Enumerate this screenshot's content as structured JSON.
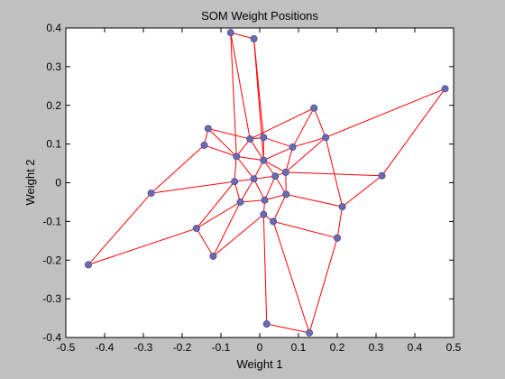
{
  "chart_data": {
    "type": "scatter",
    "title": "SOM Weight Positions",
    "xlabel": "Weight 1",
    "ylabel": "Weight 2",
    "xlim": [
      -0.5,
      0.5
    ],
    "ylim": [
      -0.4,
      0.4
    ],
    "xticks": [
      -0.5,
      -0.4,
      -0.3,
      -0.2,
      -0.1,
      0,
      0.1,
      0.2,
      0.3,
      0.4,
      0.5
    ],
    "xtick_labels": [
      "-0.5",
      "-0.4",
      "-0.3",
      "-0.2",
      "-0.1",
      "0",
      "0.1",
      "0.2",
      "0.3",
      "0.4",
      "0.5"
    ],
    "yticks": [
      -0.4,
      -0.3,
      -0.2,
      -0.1,
      0,
      0.1,
      0.2,
      0.3,
      0.4
    ],
    "ytick_labels": [
      "-0.4",
      "-0.3",
      "-0.2",
      "-0.1",
      "0",
      "0.1",
      "0.2",
      "0.3",
      "0.4"
    ],
    "grid": false,
    "colors": {
      "figure_bg": "#c0c0c0",
      "axes_bg": "#ffffff",
      "line": "#ff0000",
      "marker": "#6b6bb0"
    },
    "nodes": [
      {
        "x": -0.075,
        "y": 0.388
      },
      {
        "x": -0.015,
        "y": 0.372
      },
      {
        "x": 0.14,
        "y": 0.193
      },
      {
        "x": 0.478,
        "y": 0.243
      },
      {
        "x": -0.133,
        "y": 0.14
      },
      {
        "x": -0.143,
        "y": 0.097
      },
      {
        "x": -0.025,
        "y": 0.113
      },
      {
        "x": 0.01,
        "y": 0.117
      },
      {
        "x": 0.085,
        "y": 0.092
      },
      {
        "x": 0.17,
        "y": 0.117
      },
      {
        "x": -0.06,
        "y": 0.068
      },
      {
        "x": 0.01,
        "y": 0.058
      },
      {
        "x": 0.067,
        "y": 0.027
      },
      {
        "x": 0.04,
        "y": 0.017
      },
      {
        "x": 0.315,
        "y": 0.018
      },
      {
        "x": -0.065,
        "y": 0.003
      },
      {
        "x": -0.015,
        "y": 0.01
      },
      {
        "x": -0.05,
        "y": -0.05
      },
      {
        "x": 0.013,
        "y": -0.045
      },
      {
        "x": 0.068,
        "y": -0.03
      },
      {
        "x": 0.213,
        "y": -0.062
      },
      {
        "x": -0.28,
        "y": -0.027
      },
      {
        "x": -0.163,
        "y": -0.118
      },
      {
        "x": 0.01,
        "y": -0.082
      },
      {
        "x": 0.035,
        "y": -0.1
      },
      {
        "x": 0.2,
        "y": -0.143
      },
      {
        "x": -0.12,
        "y": -0.19
      },
      {
        "x": -0.442,
        "y": -0.212
      },
      {
        "x": 0.018,
        "y": -0.365
      },
      {
        "x": 0.128,
        "y": -0.388
      }
    ],
    "edges": [
      [
        0,
        1
      ],
      [
        0,
        10
      ],
      [
        0,
        6
      ],
      [
        1,
        7
      ],
      [
        1,
        11
      ],
      [
        2,
        8
      ],
      [
        2,
        9
      ],
      [
        2,
        6
      ],
      [
        3,
        9
      ],
      [
        3,
        14
      ],
      [
        4,
        5
      ],
      [
        4,
        6
      ],
      [
        4,
        10
      ],
      [
        5,
        10
      ],
      [
        5,
        21
      ],
      [
        6,
        7
      ],
      [
        6,
        11
      ],
      [
        6,
        10
      ],
      [
        7,
        8
      ],
      [
        7,
        11
      ],
      [
        8,
        9
      ],
      [
        8,
        11
      ],
      [
        8,
        12
      ],
      [
        9,
        12
      ],
      [
        9,
        20
      ],
      [
        10,
        11
      ],
      [
        10,
        15
      ],
      [
        10,
        16
      ],
      [
        11,
        12
      ],
      [
        11,
        13
      ],
      [
        11,
        16
      ],
      [
        12,
        13
      ],
      [
        12,
        14
      ],
      [
        12,
        19
      ],
      [
        13,
        16
      ],
      [
        13,
        18
      ],
      [
        13,
        19
      ],
      [
        14,
        20
      ],
      [
        15,
        16
      ],
      [
        15,
        17
      ],
      [
        15,
        21
      ],
      [
        15,
        22
      ],
      [
        16,
        17
      ],
      [
        16,
        18
      ],
      [
        17,
        18
      ],
      [
        17,
        22
      ],
      [
        17,
        26
      ],
      [
        18,
        19
      ],
      [
        18,
        23
      ],
      [
        19,
        20
      ],
      [
        19,
        24
      ],
      [
        20,
        25
      ],
      [
        21,
        27
      ],
      [
        22,
        26
      ],
      [
        22,
        27
      ],
      [
        23,
        24
      ],
      [
        23,
        26
      ],
      [
        23,
        28
      ],
      [
        24,
        25
      ],
      [
        24,
        29
      ],
      [
        25,
        29
      ],
      [
        28,
        29
      ]
    ]
  }
}
